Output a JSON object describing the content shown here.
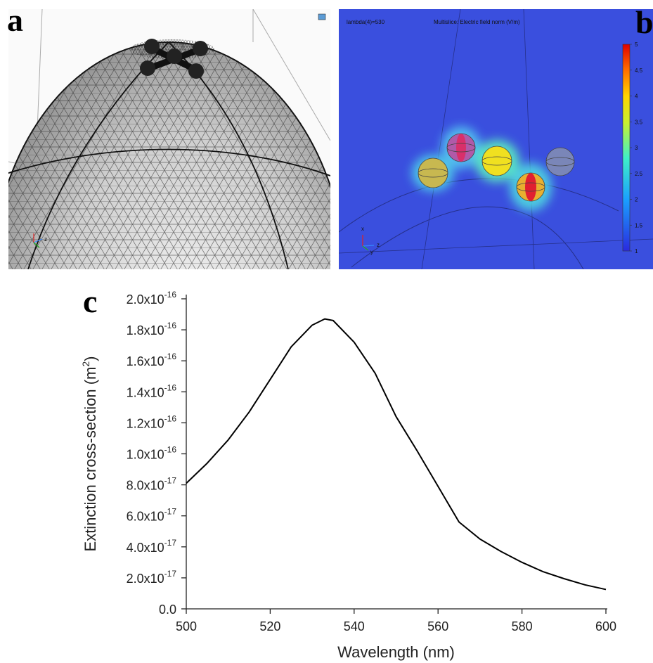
{
  "panel_labels": [
    "a",
    "b",
    "c"
  ],
  "panel_a": {
    "triad_labels": [
      "z"
    ]
  },
  "panel_b": {
    "parameter": "lambda(4)=530",
    "plot_title": "Multislice: Electric field norm (V/m)",
    "colorbar_range": [
      1,
      5
    ],
    "colorbar_ticks": [
      1,
      1.5,
      2,
      2.5,
      3,
      3.5,
      4,
      4.5,
      5
    ],
    "triad_labels": [
      "x",
      "z",
      "y"
    ]
  },
  "chart_data": {
    "type": "line",
    "x_label": "Wavelength (nm)",
    "y_label": "Extinction cross-section (m",
    "y_label_sup": "2",
    "y_label_end": ")",
    "x": [
      500,
      505,
      510,
      515,
      520,
      525,
      530,
      533,
      535,
      540,
      545,
      550,
      555,
      560,
      565,
      570,
      575,
      580,
      585,
      590,
      595,
      600
    ],
    "values": [
      8.1e-17,
      9.4e-17,
      1.09e-16,
      1.27e-16,
      1.48e-16,
      1.69e-16,
      1.83e-16,
      1.87e-16,
      1.86e-16,
      1.72e-16,
      1.52e-16,
      1.24e-16,
      1.02e-16,
      7.9e-17,
      5.6e-17,
      4.5e-17,
      3.7e-17,
      3e-17,
      2.4e-17,
      1.95e-17,
      1.55e-17,
      1.25e-17
    ],
    "color": "#000000",
    "xlim": [
      500,
      600
    ],
    "ylim": [
      0,
      2e-16
    ],
    "xticks": [
      500,
      520,
      540,
      560,
      580,
      600
    ],
    "yticks": [
      {
        "value": 0,
        "label": "0.0"
      },
      {
        "value": 2e-17,
        "label": "2.0x10",
        "exponent": "-17"
      },
      {
        "value": 4e-17,
        "label": "4.0x10",
        "exponent": "-17"
      },
      {
        "value": 6e-17,
        "label": "6.0x10",
        "exponent": "-17"
      },
      {
        "value": 8e-17,
        "label": "8.0x10",
        "exponent": "-17"
      },
      {
        "value": 1e-16,
        "label": "1.0x10",
        "exponent": "-16"
      },
      {
        "value": 1.2e-16,
        "label": "1.2x10",
        "exponent": "-16"
      },
      {
        "value": 1.4e-16,
        "label": "1.4x10",
        "exponent": "-16"
      },
      {
        "value": 1.6e-16,
        "label": "1.6x10",
        "exponent": "-16"
      },
      {
        "value": 1.8e-16,
        "label": "1.8x10",
        "exponent": "-16"
      },
      {
        "value": 2e-16,
        "label": "2.0x10",
        "exponent": "-16"
      }
    ]
  }
}
